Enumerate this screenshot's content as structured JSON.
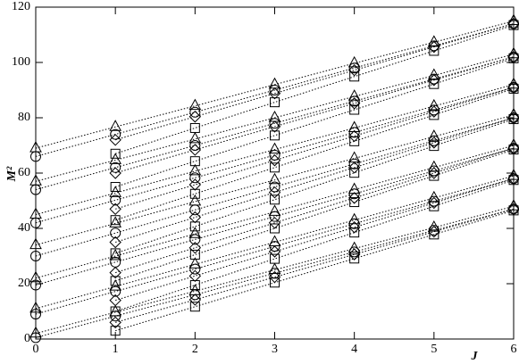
{
  "chart_data": {
    "type": "line",
    "xlabel": "J",
    "ylabel": "M²",
    "color": "#000000",
    "line_style": "dotted",
    "x": [
      0,
      1,
      2,
      3,
      4,
      5,
      6
    ],
    "xlim": [
      0,
      6
    ],
    "xticks": [
      0,
      1,
      2,
      3,
      4,
      5,
      6
    ],
    "ylim": [
      0,
      120
    ],
    "yticks": [
      0,
      20,
      40,
      60,
      80,
      100,
      120
    ],
    "series": [
      {
        "marker": "circle",
        "values": [
          0.5,
          8.3,
          16,
          23.8,
          31.5,
          39.3,
          47
        ]
      },
      {
        "marker": "circle",
        "values": [
          9,
          17.2,
          25.3,
          33.5,
          41.7,
          49.8,
          58
        ]
      },
      {
        "marker": "circle",
        "values": [
          19.5,
          27.8,
          36,
          44.3,
          52.5,
          60.8,
          69
        ]
      },
      {
        "marker": "circle",
        "values": [
          30,
          38.3,
          46.7,
          55,
          63.3,
          71.7,
          80
        ]
      },
      {
        "marker": "circle",
        "values": [
          42,
          50.2,
          58.3,
          66.5,
          74.7,
          82.8,
          91
        ]
      },
      {
        "marker": "circle",
        "values": [
          54,
          62,
          70,
          78,
          86,
          94,
          102
        ]
      },
      {
        "marker": "circle",
        "values": [
          66,
          74,
          82,
          90,
          98,
          106,
          114
        ]
      },
      {
        "marker": "triangle",
        "values": [
          2,
          9.7,
          17.3,
          25,
          32.7,
          40.3,
          48
        ]
      },
      {
        "marker": "triangle",
        "values": [
          11,
          19,
          27,
          35,
          43,
          51,
          59
        ]
      },
      {
        "marker": "triangle",
        "values": [
          22,
          30,
          38,
          46,
          54,
          62,
          70
        ]
      },
      {
        "marker": "triangle",
        "values": [
          34,
          41.8,
          49.7,
          57.5,
          65.3,
          73.2,
          81
        ]
      },
      {
        "marker": "triangle",
        "values": [
          45,
          52.8,
          60.7,
          68.5,
          76.3,
          84.2,
          92
        ]
      },
      {
        "marker": "triangle",
        "values": [
          57,
          64.7,
          72.3,
          80,
          87.7,
          95.3,
          103
        ]
      },
      {
        "marker": "triangle",
        "values": [
          69,
          76.7,
          84.3,
          92,
          99.7,
          107.3,
          115
        ]
      },
      {
        "marker": "square",
        "values": [
          null,
          3,
          11.7,
          20.4,
          29.1,
          37.8,
          46.5
        ]
      },
      {
        "marker": "square",
        "values": [
          null,
          10,
          19.5,
          29,
          38.5,
          48,
          57.5
        ]
      },
      {
        "marker": "square",
        "values": [
          null,
          21,
          30.5,
          40,
          49.5,
          59,
          68.5
        ]
      },
      {
        "marker": "square",
        "values": [
          null,
          31,
          40.7,
          50.4,
          60.1,
          69.8,
          79.5
        ]
      },
      {
        "marker": "square",
        "values": [
          null,
          43,
          52.5,
          62,
          71.5,
          81,
          90.5
        ]
      },
      {
        "marker": "square",
        "values": [
          null,
          55,
          64.3,
          73.6,
          82.9,
          92.2,
          101.5
        ]
      },
      {
        "marker": "square",
        "values": [
          null,
          67,
          76.3,
          85.6,
          94.9,
          104.2,
          113.5
        ]
      },
      {
        "marker": "diamond",
        "values": [
          null,
          6,
          14.2,
          22.4,
          30.6,
          38.8,
          47
        ]
      },
      {
        "marker": "diamond",
        "values": [
          null,
          14,
          22.8,
          31.6,
          40.4,
          49.2,
          58
        ]
      },
      {
        "marker": "diamond",
        "values": [
          null,
          24,
          33,
          42,
          51,
          60,
          69
        ]
      },
      {
        "marker": "diamond",
        "values": [
          null,
          35,
          44,
          53,
          62,
          71,
          80
        ]
      },
      {
        "marker": "diamond",
        "values": [
          null,
          47,
          55.8,
          64.6,
          73.4,
          82.2,
          91
        ]
      },
      {
        "marker": "diamond",
        "values": [
          null,
          60,
          68.4,
          76.8,
          85.2,
          93.6,
          102
        ]
      },
      {
        "marker": "diamond",
        "values": [
          null,
          72,
          80.4,
          88.8,
          97.2,
          105.6,
          114
        ]
      }
    ]
  }
}
